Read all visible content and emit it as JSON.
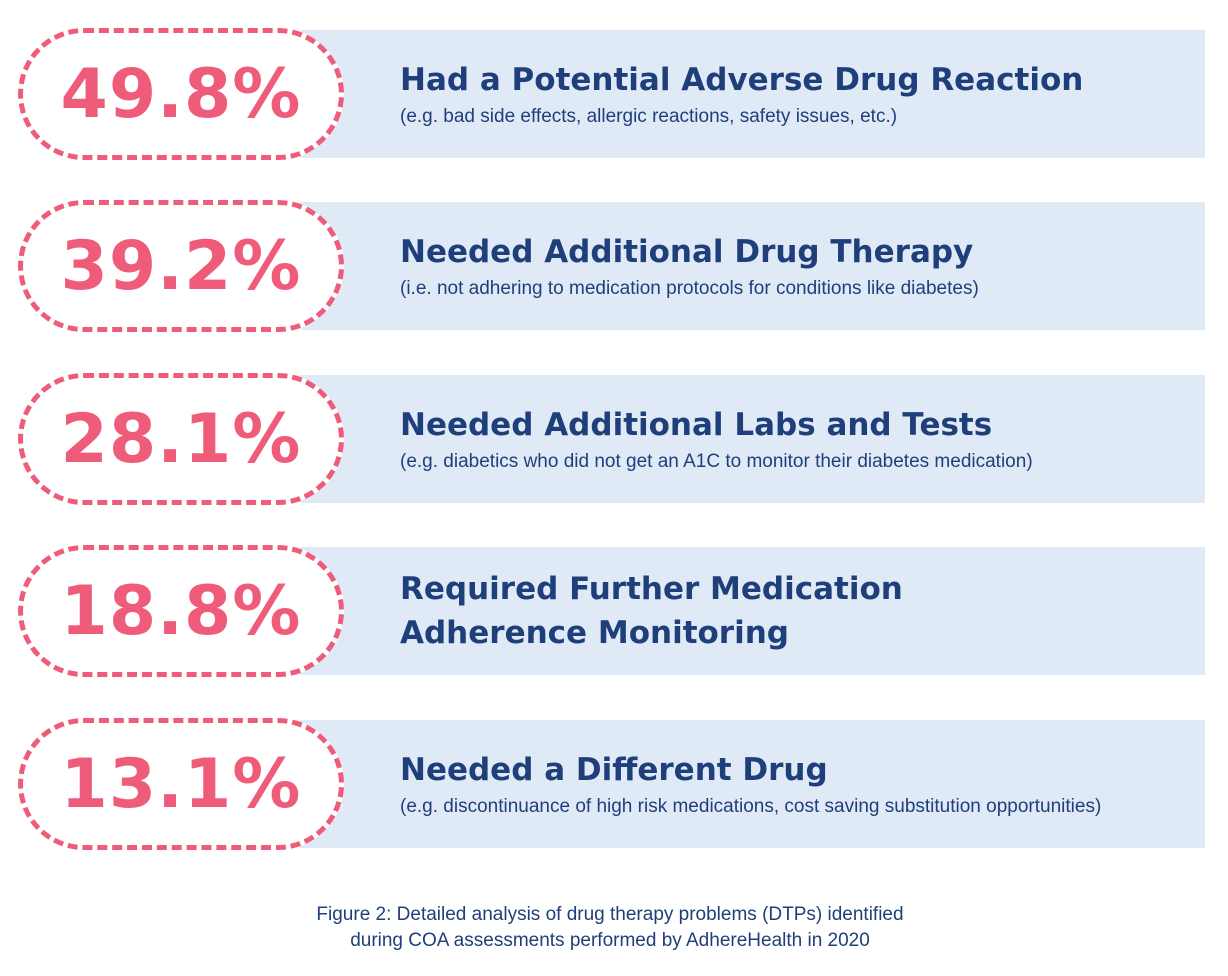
{
  "chart_data": {
    "type": "bar",
    "title": "Drug therapy problems (DTPs) identified",
    "categories": [
      "Had a Potential Adverse Drug Reaction",
      "Needed Additional Drug Therapy",
      "Needed Additional Labs and Tests",
      "Required Further Medication Adherence Monitoring",
      "Needed a Different Drug"
    ],
    "values": [
      49.8,
      39.2,
      28.1,
      18.8,
      13.1
    ],
    "unit": "%",
    "items": [
      {
        "value_label": "49.8%",
        "title": "Had a Potential Adverse Drug Reaction",
        "subtitle": "(e.g. bad side effects, allergic reactions, safety issues, etc.)"
      },
      {
        "value_label": "39.2%",
        "title": "Needed Additional Drug Therapy",
        "subtitle": "(i.e. not adhering to medication protocols for conditions like diabetes)"
      },
      {
        "value_label": "28.1%",
        "title": "Needed Additional Labs and Tests",
        "subtitle": "(e.g. diabetics who did not get an A1C to monitor their diabetes medication)"
      },
      {
        "value_label": "18.8%",
        "title": "Required Further Medication\nAdherence Monitoring",
        "subtitle": ""
      },
      {
        "value_label": "13.1%",
        "title": "Needed a Different Drug",
        "subtitle": "(e.g. discontinuance of high risk medications, cost saving substitution opportunities)"
      }
    ]
  },
  "caption": {
    "line1": "Figure 2: Detailed analysis of drug therapy problems (DTPs) identified",
    "line2": "during COA assessments performed by AdhereHealth in 2020"
  },
  "colors": {
    "accent_pink": "#ef5c7a",
    "text_navy": "#1f3f7a",
    "band_blue": "#e0eaf7"
  }
}
